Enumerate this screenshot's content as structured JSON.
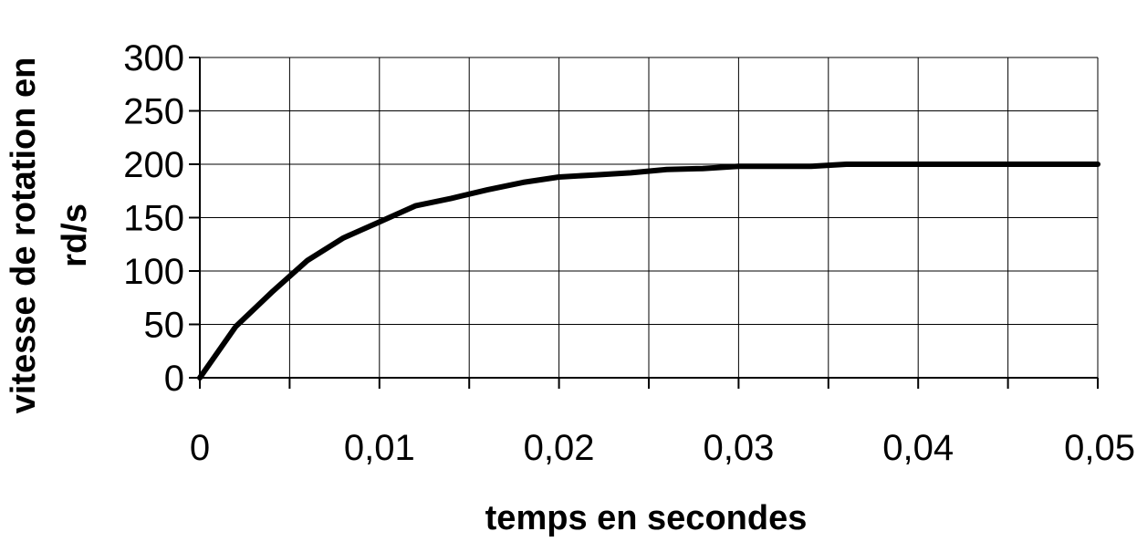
{
  "chart_data": {
    "type": "line",
    "title": "",
    "xlabel": "temps en secondes",
    "ylabel_lines": [
      "vitesse de rotation en",
      "rd/s"
    ],
    "xlim": [
      0,
      0.05
    ],
    "ylim": [
      0,
      300
    ],
    "xticks": [
      "0",
      "0,01",
      "0,02",
      "0,03",
      "0,04",
      "0,05"
    ],
    "yticks": [
      "0",
      "50",
      "100",
      "150",
      "200",
      "250",
      "300"
    ],
    "grid": true,
    "legend": "none",
    "line_color": "#000000",
    "series": [
      {
        "x": [
          0,
          0.002,
          0.004,
          0.006,
          0.008,
          0.01,
          0.012,
          0.014,
          0.016,
          0.018,
          0.02,
          0.022,
          0.024,
          0.026,
          0.028,
          0.03,
          0.032,
          0.034,
          0.036,
          0.04,
          0.045,
          0.05
        ],
        "y": [
          0,
          48,
          80,
          110,
          131,
          146,
          161,
          168,
          176,
          183,
          188,
          190,
          192,
          195,
          196,
          198,
          198,
          198,
          200,
          200,
          200,
          200
        ]
      }
    ]
  }
}
